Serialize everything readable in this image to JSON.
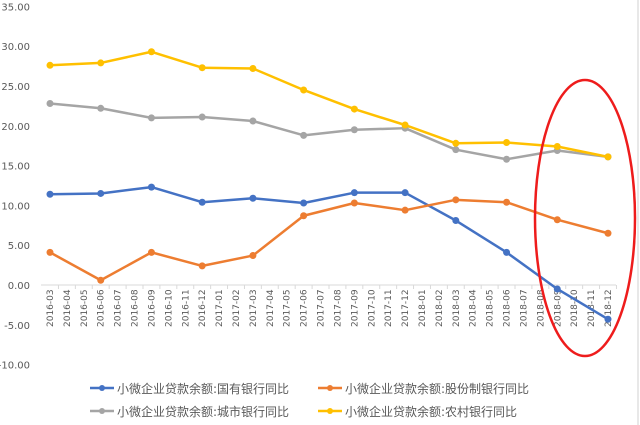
{
  "chart_data": {
    "type": "line",
    "title": "",
    "xlabel": "",
    "ylabel": "",
    "ylim": [
      -10,
      35
    ],
    "yticks": [
      "35.00",
      "30.00",
      "25.00",
      "20.00",
      "15.00",
      "10.00",
      "5.00",
      "0.00",
      "-5.00",
      "-10.00"
    ],
    "ytick_values": [
      35,
      30,
      25,
      20,
      15,
      10,
      5,
      0,
      -5,
      -10
    ],
    "categories": [
      "2016-03",
      "2016-04",
      "2016-05",
      "2016-06",
      "2016-07",
      "2016-08",
      "2016-09",
      "2016-10",
      "2016-11",
      "2016-12",
      "2017-01",
      "2017-02",
      "2017-03",
      "2017-04",
      "2017-05",
      "2017-06",
      "2017-07",
      "2017-08",
      "2017-09",
      "2017-10",
      "2017-11",
      "2017-12",
      "2018-01",
      "2018-02",
      "2018-03",
      "2018-04",
      "2018-05",
      "2018-06",
      "2018-07",
      "2018-08",
      "2018-09",
      "2018-10",
      "2018-11",
      "2018-12"
    ],
    "x": [
      "2016-03",
      "2016-06",
      "2016-09",
      "2016-12",
      "2017-03",
      "2017-06",
      "2017-09",
      "2017-12",
      "2018-03",
      "2018-06",
      "2018-09",
      "2018-12"
    ],
    "series": [
      {
        "name": "小微企业贷款余额:国有银行同比",
        "color": "#4472c4",
        "values": [
          11.4,
          11.5,
          12.3,
          10.4,
          10.9,
          10.3,
          11.6,
          11.6,
          8.1,
          4.1,
          -0.5,
          -4.3
        ]
      },
      {
        "name": "小微企业贷款余额:股份制银行同比",
        "color": "#ed7d31",
        "values": [
          4.1,
          0.6,
          4.1,
          2.4,
          3.7,
          8.7,
          10.3,
          9.4,
          10.7,
          10.4,
          8.2,
          6.5
        ]
      },
      {
        "name": "小微企业贷款余额:城市银行同比",
        "color": "#a5a5a5",
        "values": [
          22.8,
          22.2,
          21.0,
          21.1,
          20.6,
          18.8,
          19.5,
          19.7,
          17.0,
          15.8,
          16.9,
          16.1
        ]
      },
      {
        "name": "小微企业贷款余额:农村银行同比",
        "color": "#ffc000",
        "values": [
          27.6,
          27.9,
          29.3,
          27.3,
          27.2,
          24.5,
          22.1,
          20.1,
          17.8,
          17.9,
          17.4,
          16.1
        ]
      }
    ],
    "grid": false,
    "legend_position": "bottom",
    "annotation": {
      "type": "ellipse",
      "color": "#ff0000",
      "highlight": [
        "2018-08",
        "2018-12"
      ]
    }
  }
}
